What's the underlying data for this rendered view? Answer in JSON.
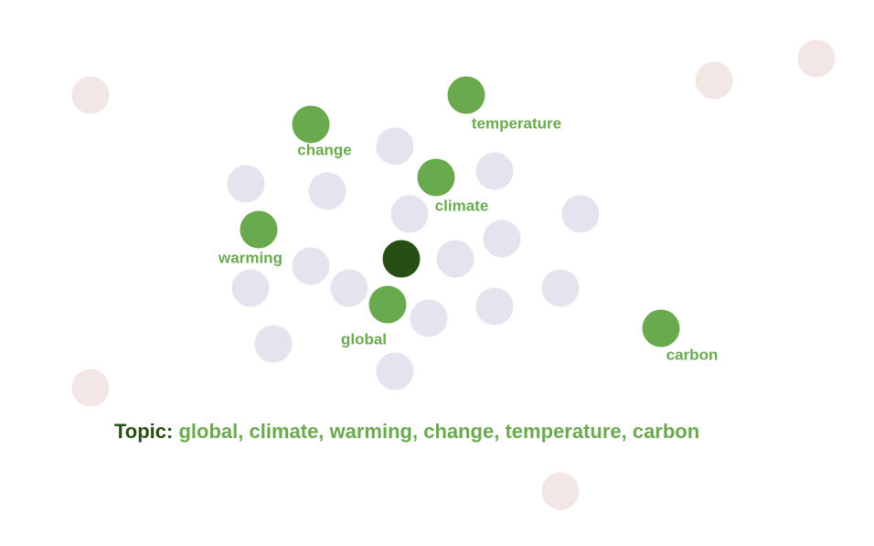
{
  "colors": {
    "background": "#ffffff",
    "term_node": "#6aaa4f",
    "center_node": "#274f14",
    "neighbor_node": "#e6e3ef",
    "outlier_node": "#f3e7e5",
    "label_text": "#6aaa4f",
    "topic_prefix_text": "#274f14"
  },
  "terms": [
    {
      "id": "global",
      "label": "global"
    },
    {
      "id": "climate",
      "label": "climate"
    },
    {
      "id": "warming",
      "label": "warming"
    },
    {
      "id": "change",
      "label": "change"
    },
    {
      "id": "temperature",
      "label": "temperature"
    },
    {
      "id": "carbon",
      "label": "carbon"
    }
  ],
  "topic": {
    "prefix": "Topic:",
    "terms": "global, climate, warming, change, temperature, carbon"
  }
}
